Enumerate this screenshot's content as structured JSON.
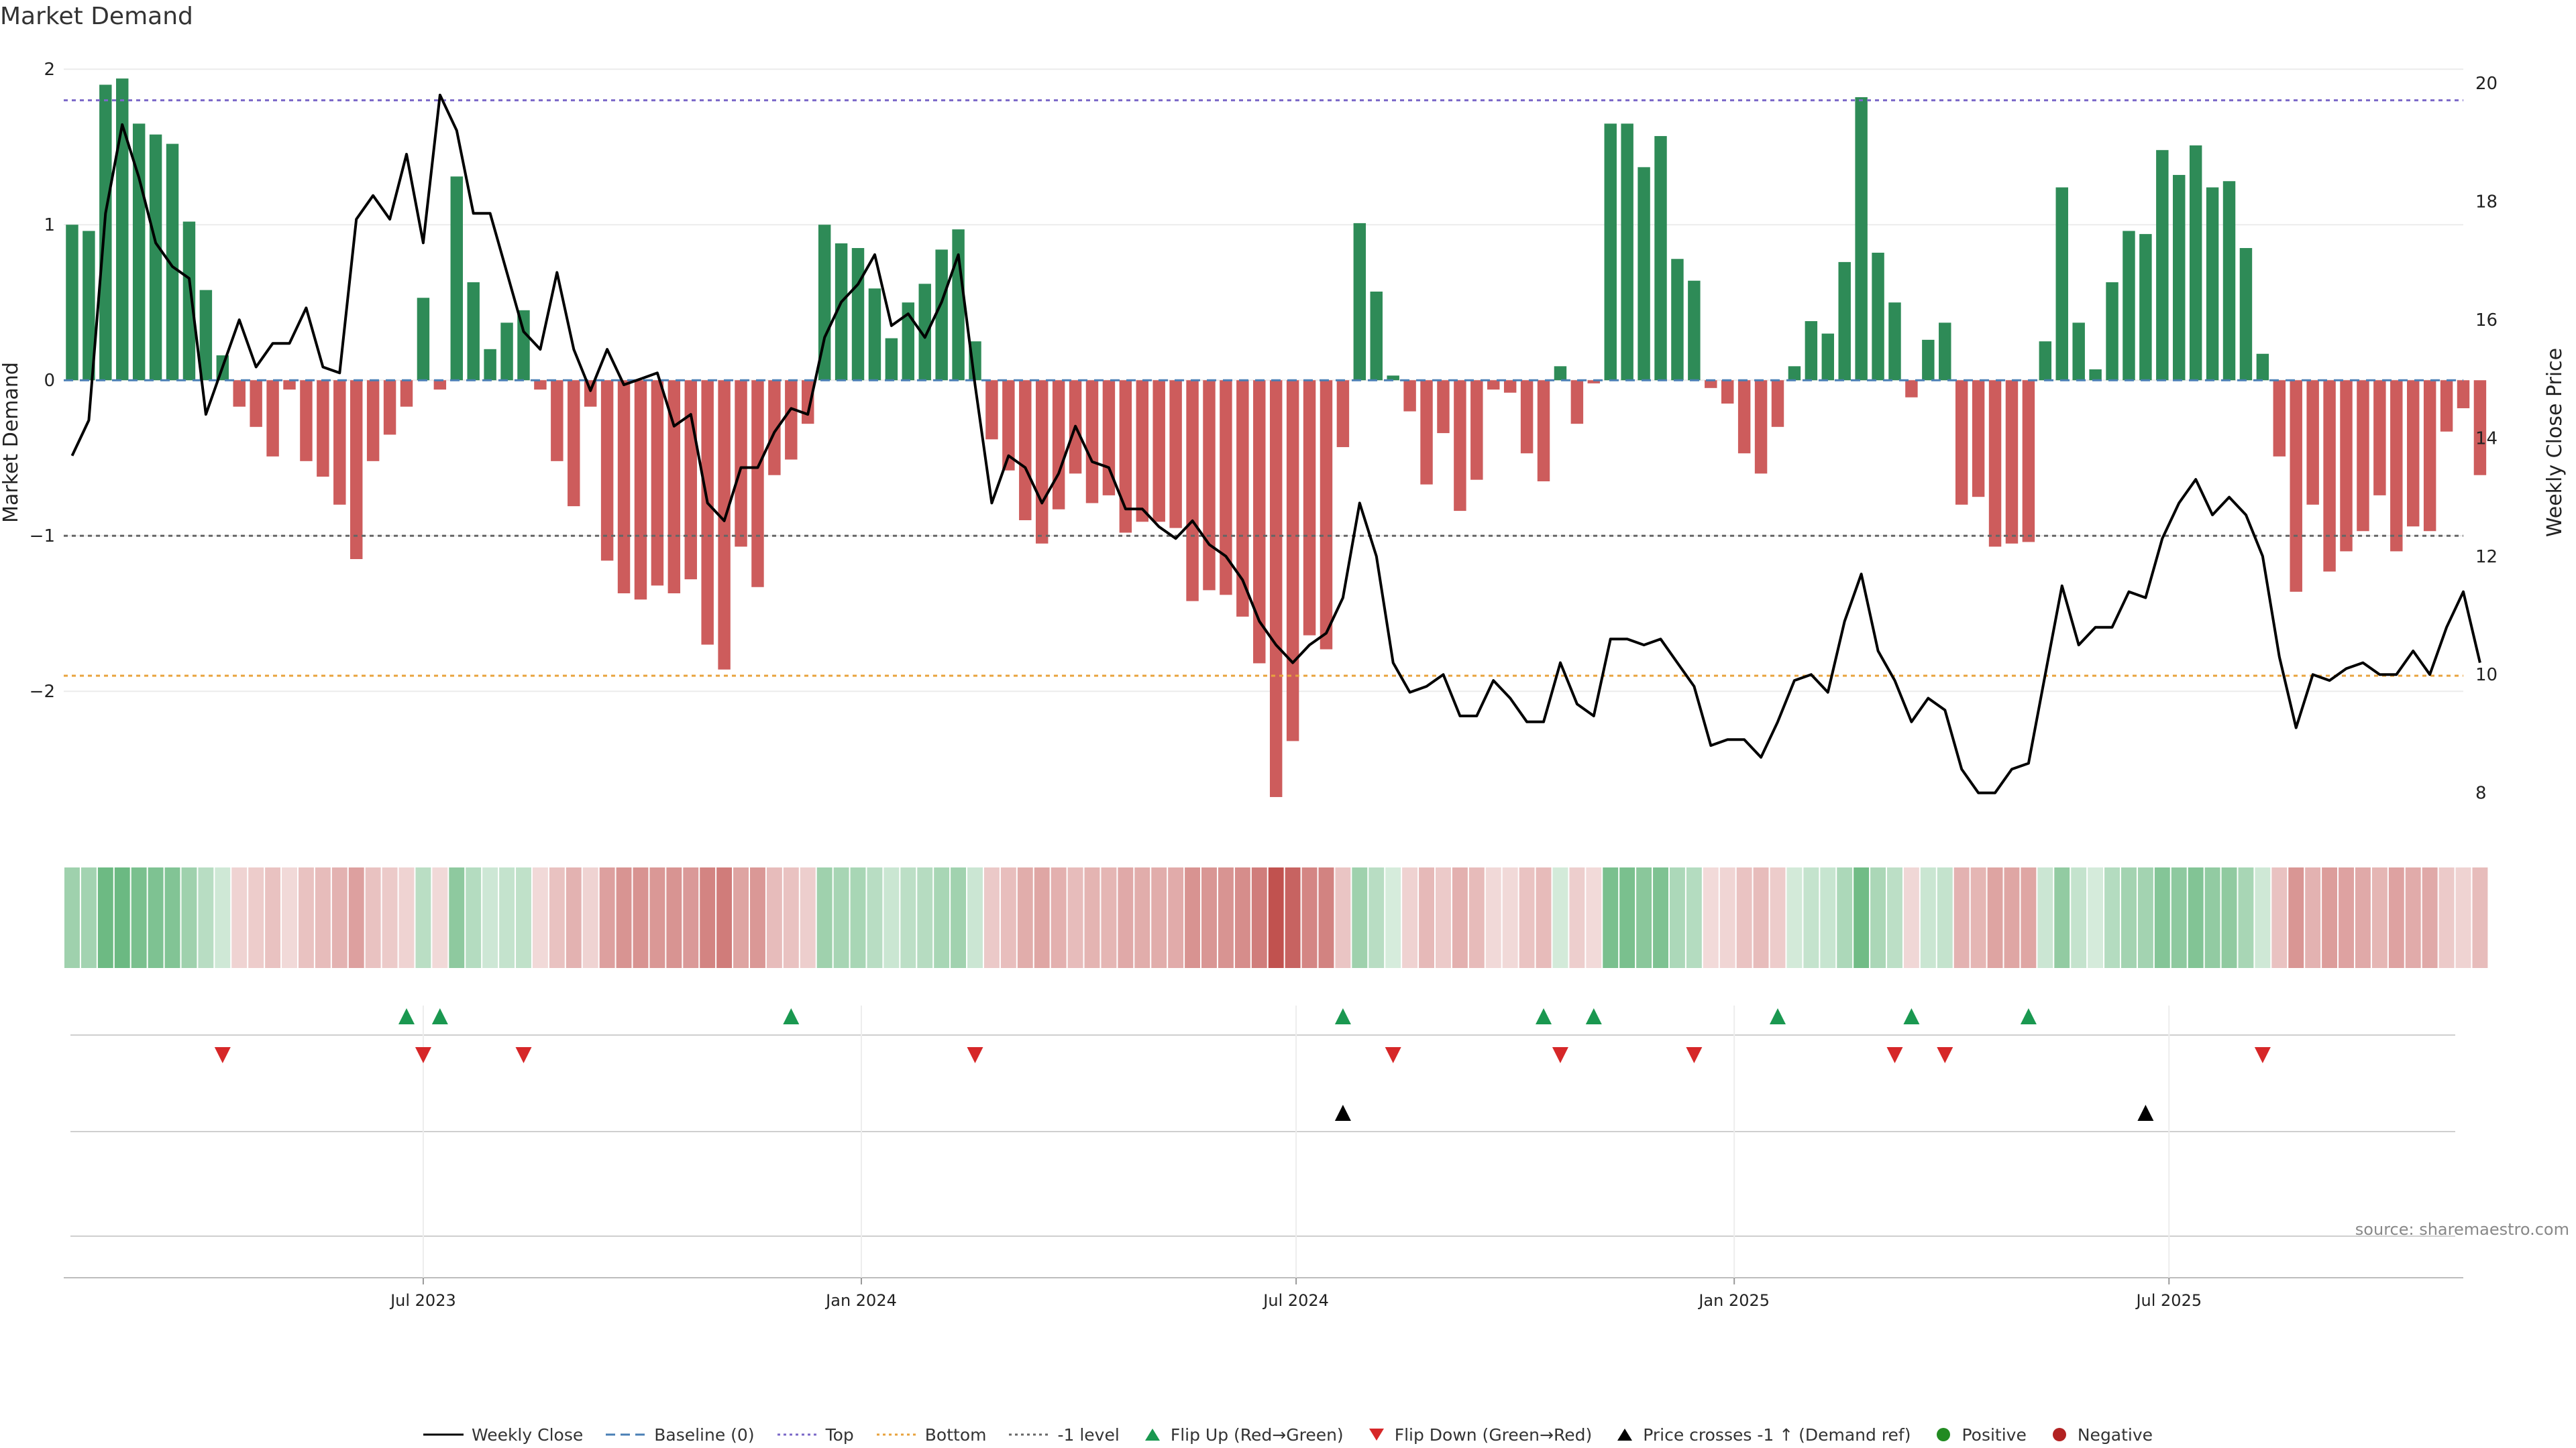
{
  "chart_data": {
    "type": "bar",
    "title": "Market Demand",
    "ylabel": "Market Demand",
    "y2label": "Weekly Close Price",
    "ylim": [
      -2.9,
      2.1
    ],
    "y2lim": [
      7.35,
      20.5
    ],
    "yticks": [
      -2,
      -1,
      0,
      1,
      2
    ],
    "y2ticks": [
      8,
      10,
      12,
      14,
      16,
      18,
      20
    ],
    "reference_lines": {
      "top": 1.8,
      "bottom": -1.9,
      "minus_one": -1.0,
      "baseline": 0
    },
    "xlim_weeks": [
      0,
      143.5
    ],
    "xticks": [
      {
        "label": "Jul 2023",
        "week": 21.5
      },
      {
        "label": "Jan 2024",
        "week": 47.7
      },
      {
        "label": "Jul 2024",
        "week": 73.7
      },
      {
        "label": "Jan 2025",
        "week": 99.9
      },
      {
        "label": "Jul 2025",
        "week": 125.9
      }
    ],
    "demand": [
      1.0,
      0.96,
      1.9,
      1.94,
      1.65,
      1.58,
      1.52,
      1.02,
      0.58,
      0.16,
      -0.17,
      -0.3,
      -0.49,
      -0.06,
      -0.52,
      -0.62,
      -0.8,
      -1.15,
      -0.52,
      -0.35,
      -0.17,
      0.53,
      -0.06,
      1.31,
      0.63,
      0.2,
      0.37,
      0.45,
      -0.06,
      -0.52,
      -0.81,
      -0.17,
      -1.16,
      -1.37,
      -1.41,
      -1.32,
      -1.37,
      -1.28,
      -1.7,
      -1.86,
      -1.07,
      -1.33,
      -0.61,
      -0.51,
      -0.28,
      1.0,
      0.88,
      0.85,
      0.59,
      0.27,
      0.5,
      0.62,
      0.84,
      0.97,
      0.25,
      -0.38,
      -0.58,
      -0.9,
      -1.05,
      -0.83,
      -0.6,
      -0.79,
      -0.74,
      -0.98,
      -0.91,
      -0.91,
      -0.95,
      -1.42,
      -1.35,
      -1.38,
      -1.52,
      -1.82,
      -2.68,
      -2.32,
      -1.64,
      -1.73,
      -0.43,
      1.01,
      0.57,
      0.03,
      -0.2,
      -0.67,
      -0.34,
      -0.84,
      -0.64,
      -0.06,
      -0.08,
      -0.47,
      -0.65,
      0.09,
      -0.28,
      -0.02,
      1.65,
      1.65,
      1.37,
      1.57,
      0.78,
      0.64,
      -0.05,
      -0.15,
      -0.47,
      -0.6,
      -0.3,
      0.09,
      0.38,
      0.3,
      0.76,
      1.82,
      0.82,
      0.5,
      -0.11,
      0.26,
      0.37,
      -0.8,
      -0.75,
      -1.07,
      -1.05,
      -1.04,
      0.25,
      1.24,
      0.37,
      0.07,
      0.63,
      0.96,
      0.94,
      1.48,
      1.32,
      1.51,
      1.24,
      1.28,
      0.85,
      0.17,
      -0.49,
      -1.36,
      -0.8,
      -1.23,
      -1.1,
      -0.97,
      -0.74,
      -1.1,
      -0.94,
      -0.97,
      -0.33,
      -0.18,
      -0.61
    ],
    "close": [
      13.7,
      14.3,
      17.8,
      19.3,
      18.4,
      17.3,
      16.9,
      16.7,
      14.4,
      15.2,
      16.0,
      15.2,
      15.6,
      15.6,
      16.2,
      15.2,
      15.1,
      17.7,
      18.1,
      17.7,
      18.8,
      17.3,
      19.8,
      19.2,
      17.8,
      17.8,
      16.8,
      15.8,
      15.5,
      16.8,
      15.5,
      14.8,
      15.5,
      14.9,
      15.0,
      15.1,
      14.2,
      14.4,
      12.9,
      12.6,
      13.5,
      13.5,
      14.1,
      14.5,
      14.4,
      15.7,
      16.3,
      16.6,
      17.1,
      15.9,
      16.1,
      15.7,
      16.3,
      17.1,
      14.9,
      12.9,
      13.7,
      13.5,
      12.9,
      13.4,
      14.2,
      13.6,
      13.5,
      12.8,
      12.8,
      12.5,
      12.3,
      12.6,
      12.2,
      12.0,
      11.6,
      10.9,
      10.5,
      10.2,
      10.5,
      10.7,
      11.3,
      12.9,
      12.0,
      10.2,
      9.7,
      9.8,
      10.0,
      9.3,
      9.3,
      9.9,
      9.6,
      9.2,
      9.2,
      10.2,
      9.5,
      9.3,
      10.6,
      10.6,
      10.5,
      10.6,
      10.2,
      9.8,
      8.8,
      8.9,
      8.9,
      8.6,
      9.2,
      9.9,
      10.0,
      9.7,
      10.9,
      11.7,
      10.4,
      9.9,
      9.2,
      9.6,
      9.4,
      8.4,
      8.0,
      8.0,
      8.4,
      8.5,
      10.0,
      11.5,
      10.5,
      10.8,
      10.8,
      11.4,
      11.3,
      12.3,
      12.9,
      13.3,
      12.7,
      13.0,
      12.7,
      12.0,
      10.3,
      9.1,
      10.0,
      9.9,
      10.1,
      10.2,
      10.0,
      10.0,
      10.4,
      10.0,
      10.8,
      11.4,
      10.2
    ],
    "flip_up_weeks": [
      20.5,
      22.5,
      43.5,
      76.5,
      88.5,
      91.5,
      102.5,
      110.5,
      117.5
    ],
    "flip_down_weeks": [
      9.5,
      21.5,
      27.5,
      54.5,
      79.5,
      89.5,
      97.5,
      109.5,
      112.5,
      131.5
    ],
    "cross_up_weeks": [
      76.5,
      124.5
    ],
    "legend": [
      "Weekly Close",
      "Baseline (0)",
      "Top",
      "Bottom",
      "-1 level",
      "Flip Up (Red→Green)",
      "Flip Down (Green→Red)",
      "Price crosses -1 ↑ (Demand ref)",
      "Positive",
      "Negative"
    ],
    "annotation": "source: sharemaestro.com"
  },
  "colors": {
    "positive": "#2e8b57",
    "negative": "#cd5c5c",
    "flip_up": "#1a9850",
    "flip_down": "#d62728",
    "top_line": "#7b68c8",
    "bottom_line": "#e8a33d",
    "minus_one_line": "#666666",
    "baseline": "#4a7fb5",
    "close_line": "#000000",
    "legend_positive": "#228b22",
    "legend_negative": "#b22222"
  }
}
